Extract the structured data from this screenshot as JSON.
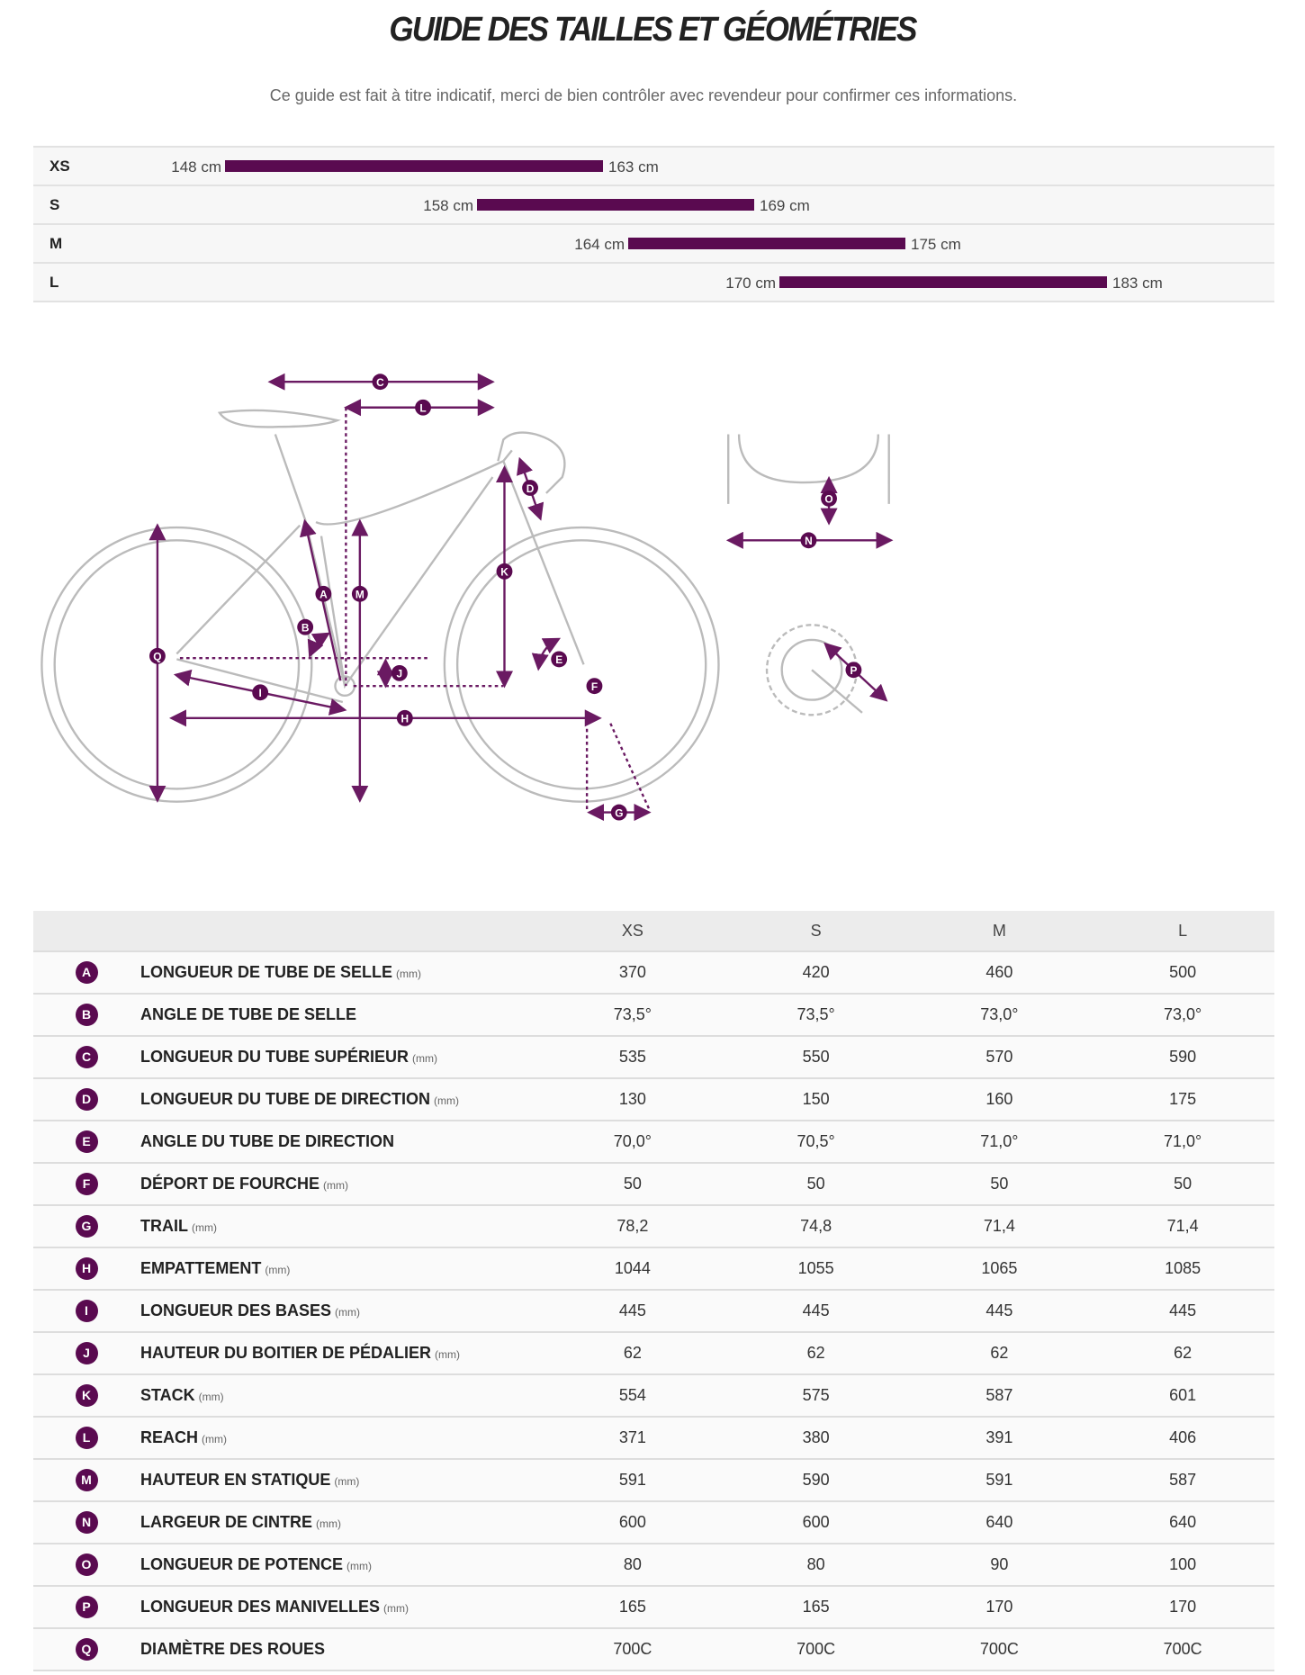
{
  "title": "GUIDE DES TAILLES ET GÉOMÉTRIES",
  "subtitle": "Ce guide est fait à titre indicatif, merci de bien contrôler avec revendeur pour confirmer ces informations.",
  "accent_color": "#5a0a50",
  "size_ranges": [
    {
      "size": "XS",
      "min": 148,
      "max": 163,
      "min_label": "148 cm",
      "max_label": "163 cm"
    },
    {
      "size": "S",
      "min": 158,
      "max": 169,
      "min_label": "158 cm",
      "max_label": "169 cm"
    },
    {
      "size": "M",
      "min": 164,
      "max": 175,
      "min_label": "164 cm",
      "max_label": "175 cm"
    },
    {
      "size": "L",
      "min": 170,
      "max": 183,
      "min_label": "170 cm",
      "max_label": "183 cm"
    }
  ],
  "diagram_labels": [
    "A",
    "B",
    "C",
    "D",
    "E",
    "F",
    "G",
    "H",
    "I",
    "J",
    "K",
    "L",
    "M",
    "N",
    "O",
    "P",
    "Q"
  ],
  "table": {
    "columns": [
      "XS",
      "S",
      "M",
      "L"
    ],
    "rows": [
      {
        "key": "A",
        "name": "LONGUEUR DE TUBE DE SELLE",
        "unit": "(mm)",
        "values": [
          "370",
          "420",
          "460",
          "500"
        ]
      },
      {
        "key": "B",
        "name": "ANGLE DE TUBE DE SELLE",
        "unit": "",
        "values": [
          "73,5°",
          "73,5°",
          "73,0°",
          "73,0°"
        ]
      },
      {
        "key": "C",
        "name": "LONGUEUR DU TUBE SUPÉRIEUR",
        "unit": "(mm)",
        "values": [
          "535",
          "550",
          "570",
          "590"
        ]
      },
      {
        "key": "D",
        "name": "LONGUEUR DU TUBE DE DIRECTION",
        "unit": "(mm)",
        "values": [
          "130",
          "150",
          "160",
          "175"
        ]
      },
      {
        "key": "E",
        "name": "ANGLE DU TUBE DE DIRECTION",
        "unit": "",
        "values": [
          "70,0°",
          "70,5°",
          "71,0°",
          "71,0°"
        ]
      },
      {
        "key": "F",
        "name": "DÉPORT DE FOURCHE",
        "unit": "(mm)",
        "values": [
          "50",
          "50",
          "50",
          "50"
        ]
      },
      {
        "key": "G",
        "name": "TRAIL",
        "unit": "(mm)",
        "values": [
          "78,2",
          "74,8",
          "71,4",
          "71,4"
        ]
      },
      {
        "key": "H",
        "name": "EMPATTEMENT",
        "unit": "(mm)",
        "values": [
          "1044",
          "1055",
          "1065",
          "1085"
        ]
      },
      {
        "key": "I",
        "name": "LONGUEUR DES BASES",
        "unit": "(mm)",
        "values": [
          "445",
          "445",
          "445",
          "445"
        ]
      },
      {
        "key": "J",
        "name": "HAUTEUR DU BOITIER DE PÉDALIER",
        "unit": "(mm)",
        "values": [
          "62",
          "62",
          "62",
          "62"
        ]
      },
      {
        "key": "K",
        "name": "STACK",
        "unit": "(mm)",
        "values": [
          "554",
          "575",
          "587",
          "601"
        ]
      },
      {
        "key": "L",
        "name": "REACH",
        "unit": "(mm)",
        "values": [
          "371",
          "380",
          "391",
          "406"
        ]
      },
      {
        "key": "M",
        "name": "HAUTEUR EN STATIQUE",
        "unit": "(mm)",
        "values": [
          "591",
          "590",
          "591",
          "587"
        ]
      },
      {
        "key": "N",
        "name": "LARGEUR DE CINTRE",
        "unit": "(mm)",
        "values": [
          "600",
          "600",
          "640",
          "640"
        ]
      },
      {
        "key": "O",
        "name": "LONGUEUR DE POTENCE",
        "unit": "(mm)",
        "values": [
          "80",
          "80",
          "90",
          "100"
        ]
      },
      {
        "key": "P",
        "name": "LONGUEUR DES MANIVELLES",
        "unit": "(mm)",
        "values": [
          "165",
          "165",
          "170",
          "170"
        ]
      },
      {
        "key": "Q",
        "name": "DIAMÈTRE DES ROUES",
        "unit": "",
        "values": [
          "700C",
          "700C",
          "700C",
          "700C"
        ]
      }
    ]
  }
}
